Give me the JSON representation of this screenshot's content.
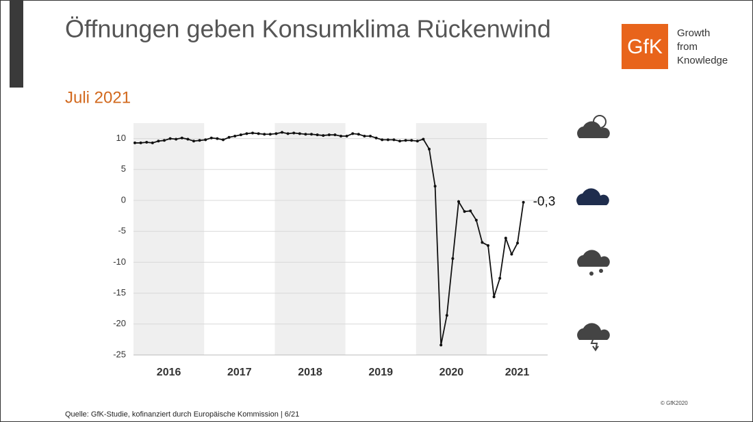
{
  "header": {
    "title": "Öffnungen geben Konsumklima Rückenwind",
    "logo": "GfK",
    "logo_tagline": [
      "Growth",
      "from",
      "Knowledge"
    ]
  },
  "chart_data": {
    "type": "line",
    "subtitle": "Juli 2021",
    "color": "#111111",
    "x_groups": [
      {
        "label": "2016",
        "values": [
          9.3,
          9.3,
          9.4,
          9.3,
          9.6,
          9.7,
          10.0,
          9.9,
          10.1,
          9.9,
          9.6,
          9.7
        ]
      },
      {
        "label": "2017",
        "values": [
          9.8,
          10.1,
          10.0,
          9.8,
          10.2,
          10.4,
          10.6,
          10.8,
          10.9,
          10.8,
          10.7,
          10.7
        ]
      },
      {
        "label": "2018",
        "values": [
          10.8,
          11.0,
          10.8,
          10.9,
          10.8,
          10.7,
          10.7,
          10.6,
          10.5,
          10.6,
          10.6,
          10.4
        ]
      },
      {
        "label": "2019",
        "values": [
          10.4,
          10.8,
          10.7,
          10.4,
          10.4,
          10.1,
          9.8,
          9.8,
          9.8,
          9.6,
          9.7,
          9.7
        ]
      },
      {
        "label": "2020",
        "values": [
          9.6,
          9.9,
          8.3,
          2.3,
          -23.4,
          -18.6,
          -9.4,
          -0.2,
          -1.8,
          -1.7,
          -3.2,
          -6.8
        ]
      },
      {
        "label": "2021",
        "values": [
          -7.3,
          -15.6,
          -12.6,
          -6.1,
          -8.7,
          -6.9,
          -0.3
        ],
        "value_labels": [
          null,
          null,
          null,
          null,
          null,
          null,
          "-0,3"
        ]
      }
    ],
    "ylim": [
      -25,
      12.5
    ],
    "yticks": [
      -25,
      -20,
      -15,
      -10,
      -5,
      0,
      5,
      10
    ]
  },
  "footer": {
    "source": "Quelle: GfK-Studie, kofinanziert durch Europäische Kommission | 6/21",
    "copyright": "© GfK2020"
  }
}
